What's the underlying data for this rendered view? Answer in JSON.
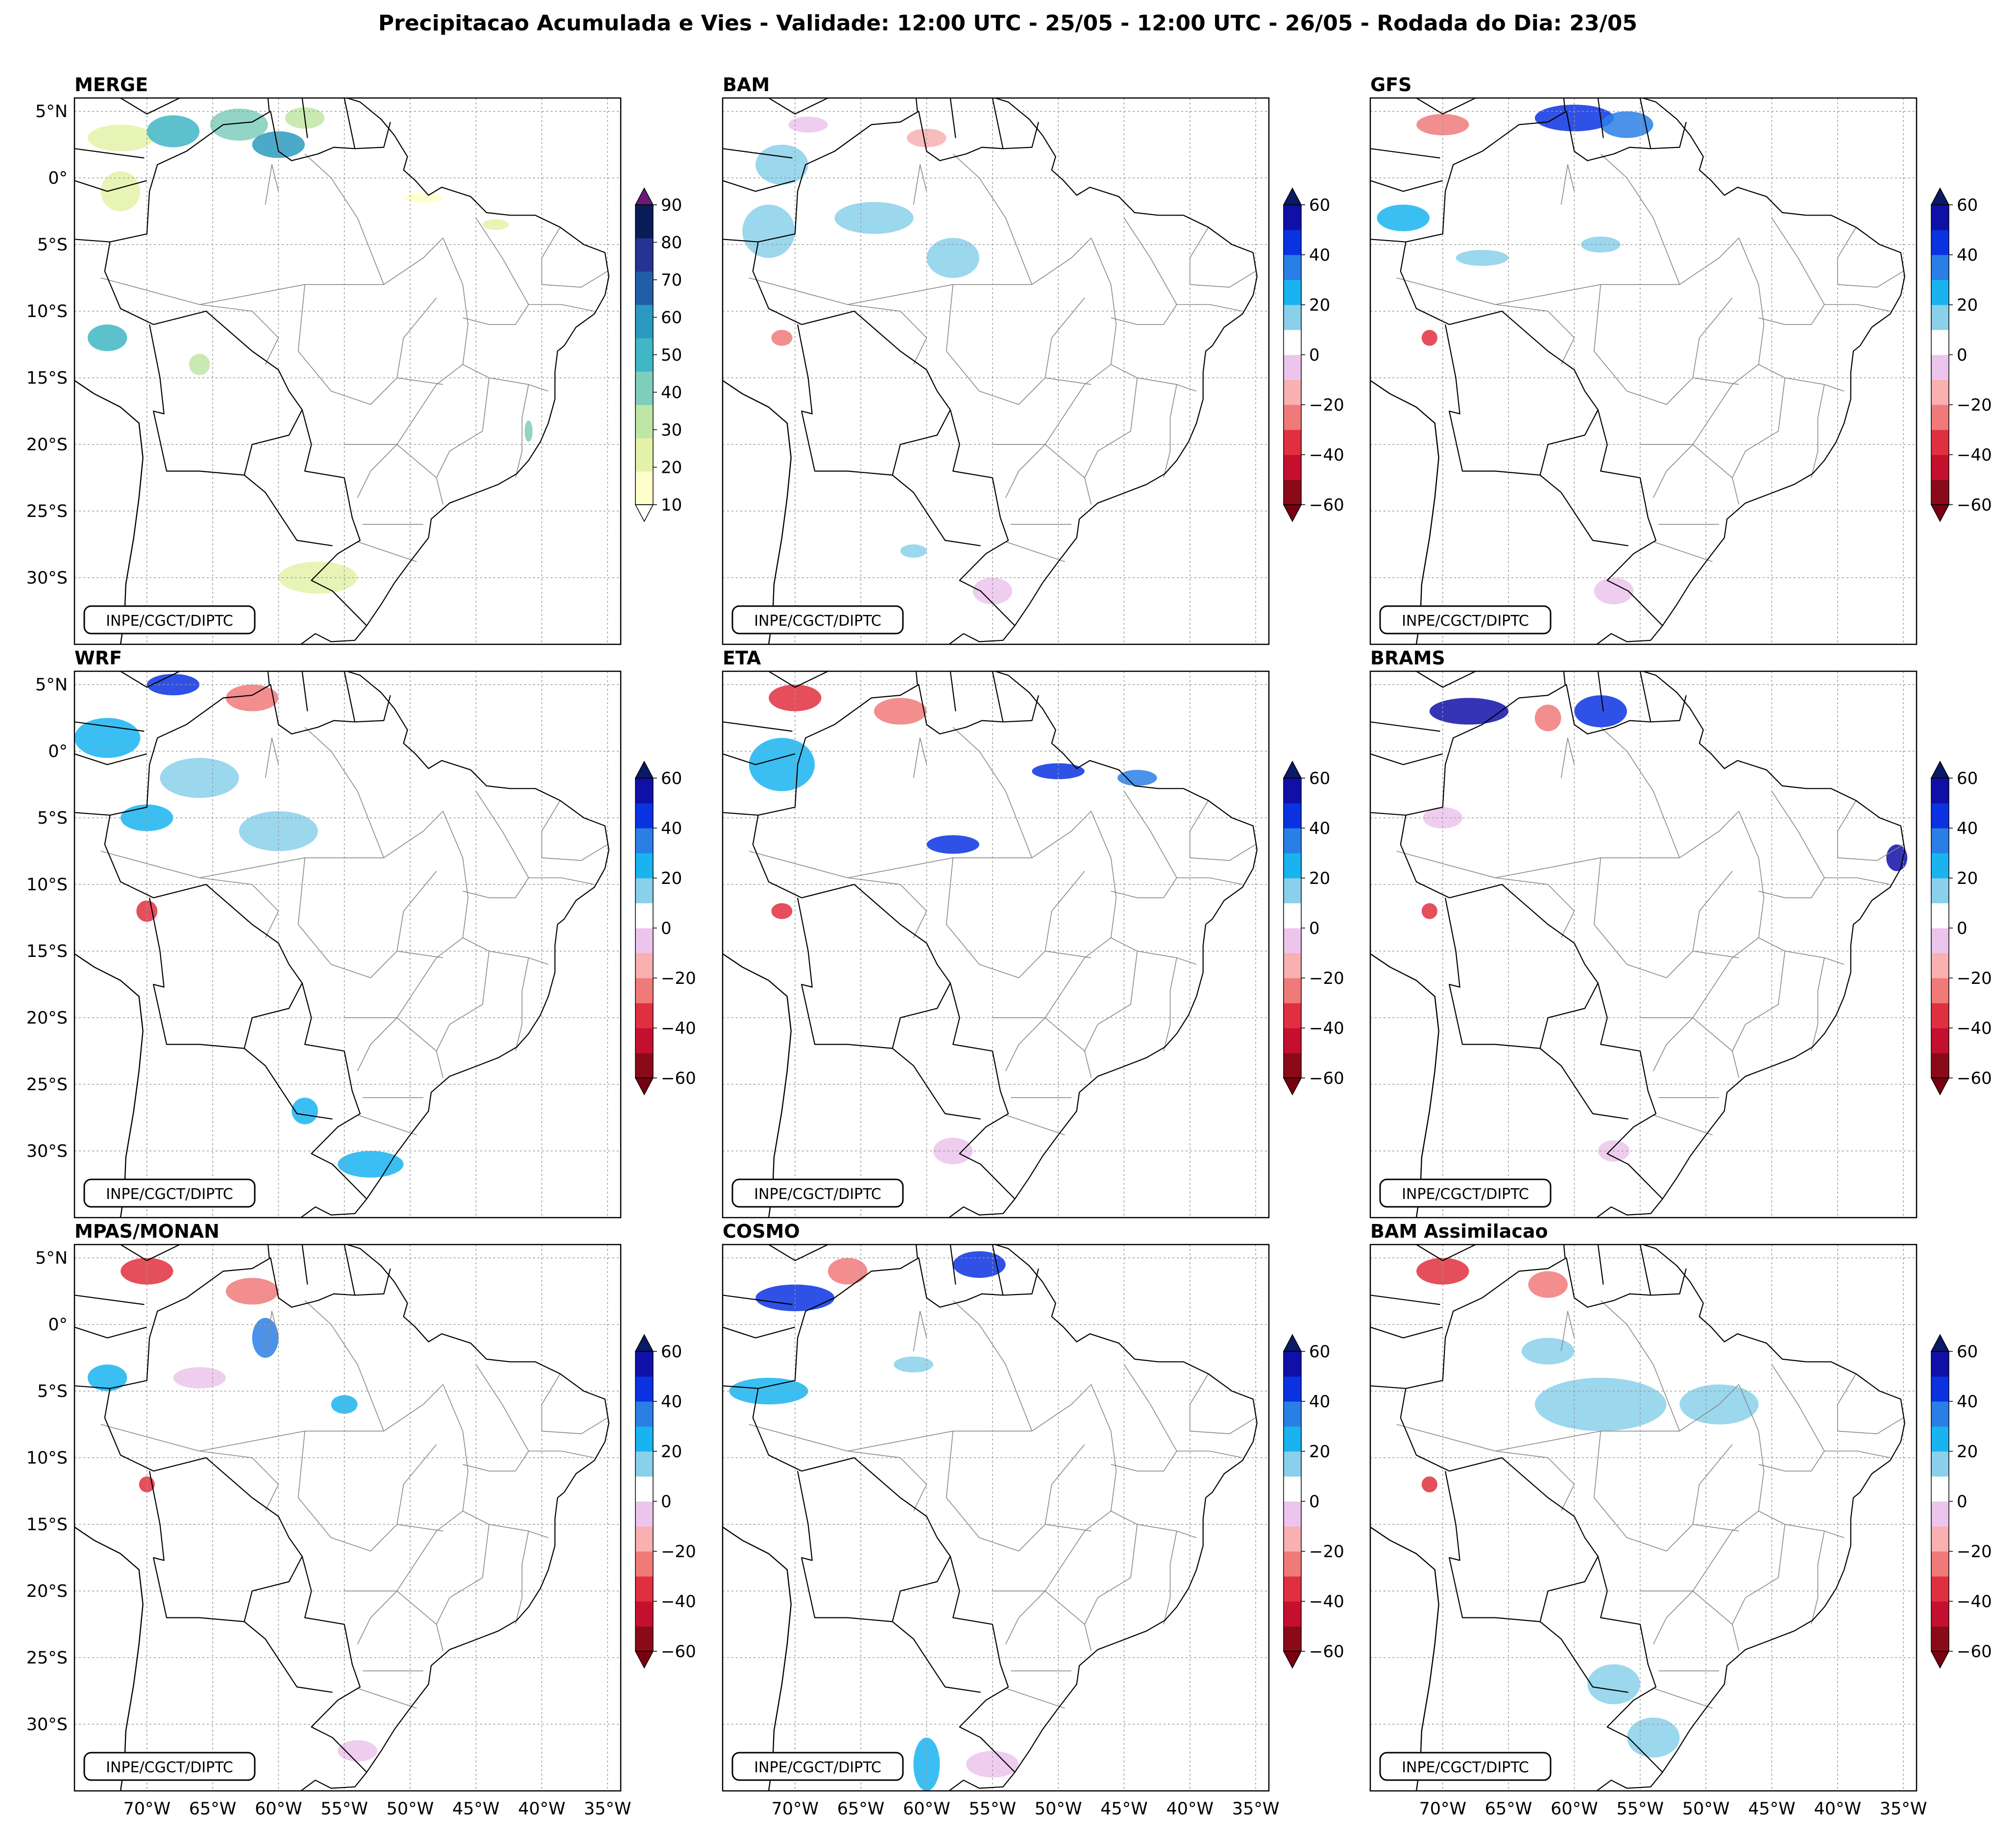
{
  "figure": {
    "title": "Precipitacao Acumulada e Vies - Validade: 12:00 UTC - 25/05 - 12:00 UTC - 26/05 - Rodada do Dia: 23/05",
    "credit": "INPE/CGCT/DIPTC"
  },
  "axes": {
    "lon_ticks": [
      "70°W",
      "65°W",
      "60°W",
      "55°W",
      "50°W",
      "45°W",
      "40°W",
      "35°W"
    ],
    "lat_ticks": [
      "5°N",
      "0°",
      "5°S",
      "10°S",
      "15°S",
      "20°S",
      "25°S",
      "30°S"
    ]
  },
  "colorbars": {
    "merge": {
      "levels": [
        10,
        20,
        30,
        40,
        50,
        60,
        70,
        80,
        90
      ],
      "labels": [
        "90",
        "80",
        "70",
        "60",
        "50",
        "40",
        "30",
        "20",
        "10"
      ],
      "colors": [
        "#ffffcc",
        "#e3f2a8",
        "#bfe6a5",
        "#7fcdbb",
        "#41b6c4",
        "#2c9ac0",
        "#225ea8",
        "#253494",
        "#081d58"
      ],
      "over_color": "#6a1b7a",
      "under_color": "#ffffff"
    },
    "bias": {
      "levels": [
        -60,
        -50,
        -40,
        -30,
        -20,
        -10,
        10,
        20,
        30,
        40,
        50,
        60
      ],
      "labels": [
        "60",
        "40",
        "20",
        "0",
        "−20",
        "−40",
        "−60"
      ],
      "colors": [
        "#8b0a1a",
        "#c4102e",
        "#e03040",
        "#f07a7a",
        "#f8b0b0",
        "#ecc4ec",
        "#ffffff",
        "#8ad0ea",
        "#19b4f0",
        "#2a7fe6",
        "#0a32e0",
        "#1010a8"
      ],
      "over_color": "#0b1a66",
      "under_color": "#7a0010"
    }
  },
  "panels": [
    {
      "id": "merge",
      "title": "MERGE",
      "colorbar": "merge"
    },
    {
      "id": "bam",
      "title": "BAM",
      "colorbar": "bias"
    },
    {
      "id": "gfs",
      "title": "GFS",
      "colorbar": "bias"
    },
    {
      "id": "wrf",
      "title": "WRF",
      "colorbar": "bias"
    },
    {
      "id": "eta",
      "title": "ETA",
      "colorbar": "bias"
    },
    {
      "id": "brams",
      "title": "BRAMS",
      "colorbar": "bias"
    },
    {
      "id": "mpas",
      "title": "MPAS/MONAN",
      "colorbar": "bias"
    },
    {
      "id": "cosmo",
      "title": "COSMO",
      "colorbar": "bias"
    },
    {
      "id": "bamassim",
      "title": "BAM Assimilacao",
      "colorbar": "bias"
    }
  ]
}
